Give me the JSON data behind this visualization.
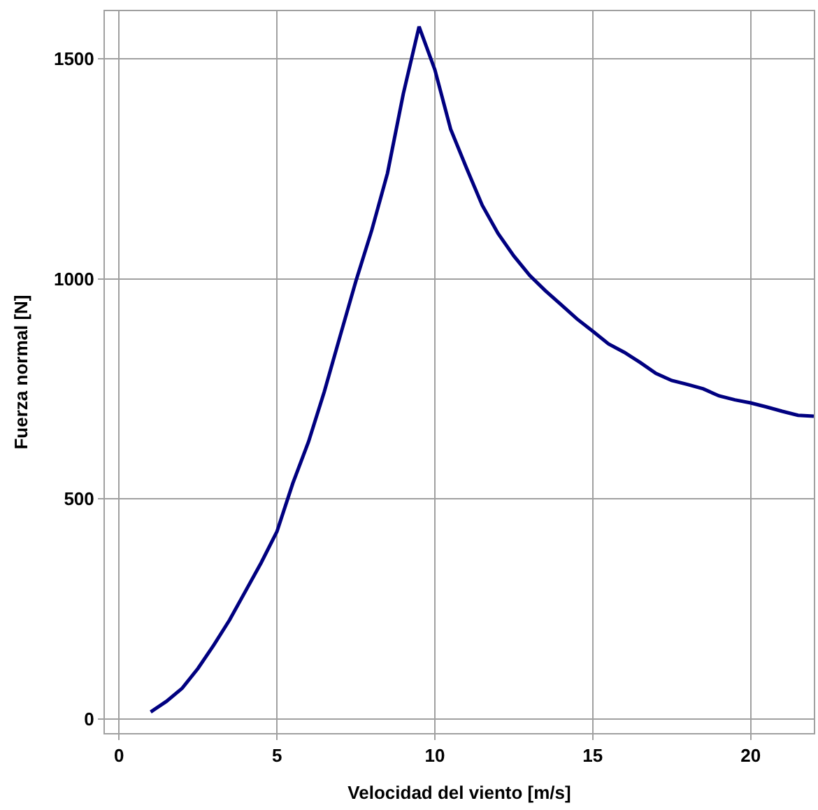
{
  "chart_data": {
    "type": "line",
    "xlabel": "Velocidad del viento [m/s]",
    "ylabel": "Fuerza normal [N]",
    "x": [
      1,
      1.5,
      2,
      2.5,
      3,
      3.5,
      4,
      4.5,
      5,
      5.5,
      6,
      6.5,
      7,
      7.5,
      8,
      8.5,
      9,
      9.5,
      10,
      10.5,
      11,
      11.5,
      12,
      12.5,
      13,
      13.5,
      14,
      14.5,
      15,
      15.5,
      16,
      16.5,
      17,
      17.5,
      18,
      18.5,
      19,
      19.5,
      20,
      20.5,
      21,
      21.5,
      22
    ],
    "series": [
      {
        "color": "#000080",
        "values": [
          16,
          40,
          70,
          115,
          168,
          225,
          290,
          355,
          426,
          535,
          630,
          744,
          870,
          995,
          1110,
          1240,
          1420,
          1573,
          1475,
          1340,
          1252,
          1167,
          1103,
          1052,
          1008,
          973,
          941,
          909,
          881,
          852,
          833,
          810,
          785,
          769,
          760,
          750,
          734,
          725,
          718,
          709,
          699,
          690,
          688
        ]
      }
    ],
    "xlim": [
      -0.45,
      22
    ],
    "ylim": [
      -32,
      1608
    ],
    "xticks": [
      0,
      5,
      10,
      15,
      20
    ],
    "yticks": [
      0,
      500,
      1000,
      1500
    ],
    "grid": true,
    "marker": "none",
    "line_style": "solid"
  }
}
